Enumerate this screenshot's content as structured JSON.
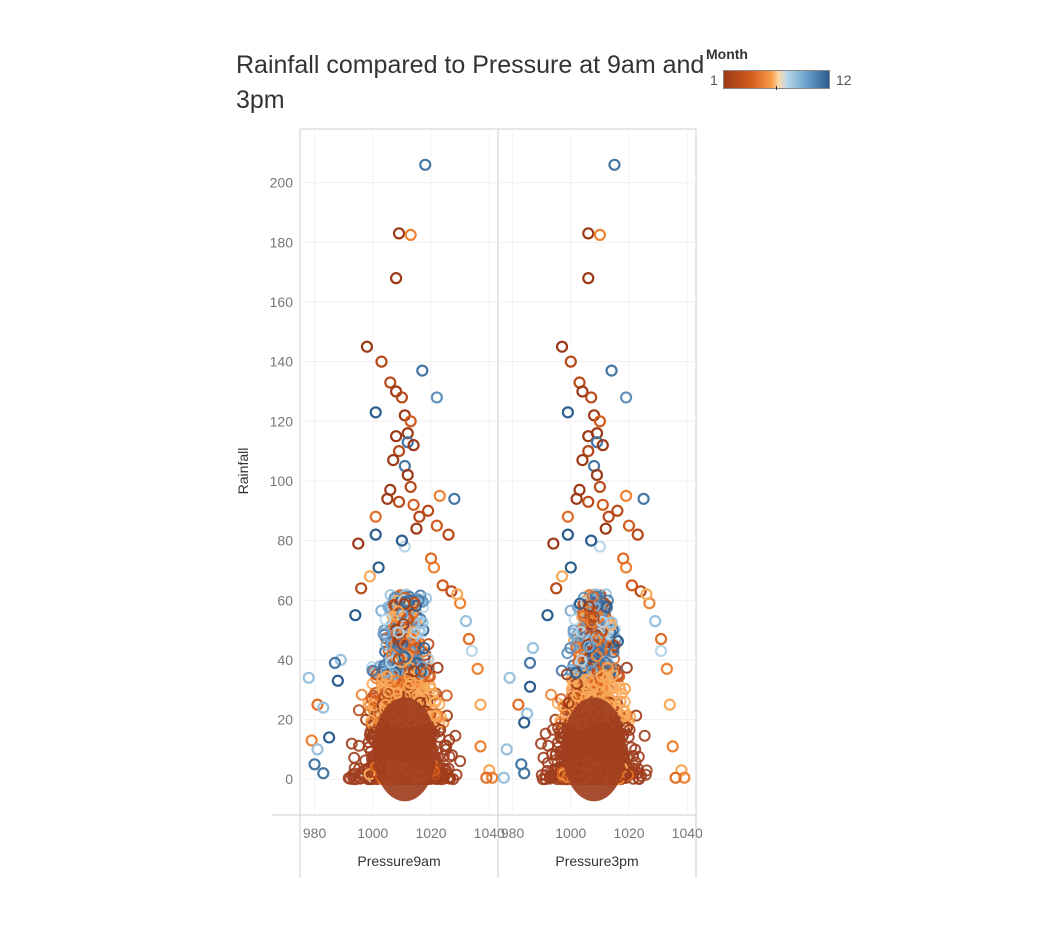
{
  "chart_data": {
    "type": "scatter",
    "title": "Rainfall compared to Pressure at 9am and 3pm",
    "ylabel": "Rainfall",
    "ylim": [
      -12,
      218
    ],
    "yticks": [
      0,
      20,
      40,
      60,
      80,
      100,
      120,
      140,
      160,
      180,
      200
    ],
    "grid": true,
    "legend": {
      "title": "Month",
      "min_label": "1",
      "max_label": "12",
      "placement": "top-right"
    },
    "colors": {
      "month_1": "#9c3a17",
      "month_6": "#f89a45",
      "month_7": "#b7d7ea",
      "month_12": "#2c5d8f"
    },
    "panels": [
      {
        "xlabel": "Pressure9am",
        "xlim": [
          975,
          1043
        ],
        "xticks": [
          980,
          1000,
          1020,
          1040
        ],
        "points": [
          {
            "x": 1018,
            "y": 206,
            "month": 11
          },
          {
            "x": 1009,
            "y": 183,
            "month": 1
          },
          {
            "x": 1013,
            "y": 182.5,
            "month": 5
          },
          {
            "x": 1008,
            "y": 168,
            "month": 1
          },
          {
            "x": 998,
            "y": 145,
            "month": 1
          },
          {
            "x": 1003,
            "y": 140,
            "month": 2
          },
          {
            "x": 1017,
            "y": 137,
            "month": 11
          },
          {
            "x": 1006,
            "y": 133,
            "month": 2
          },
          {
            "x": 1008,
            "y": 130,
            "month": 1
          },
          {
            "x": 1022,
            "y": 128,
            "month": 10
          },
          {
            "x": 1010,
            "y": 128,
            "month": 2
          },
          {
            "x": 1001,
            "y": 123,
            "month": 12
          },
          {
            "x": 1011,
            "y": 122,
            "month": 1
          },
          {
            "x": 1013,
            "y": 120,
            "month": 3
          },
          {
            "x": 1012,
            "y": 116,
            "month": 1
          },
          {
            "x": 1008,
            "y": 115,
            "month": 1
          },
          {
            "x": 1012,
            "y": 113,
            "month": 11
          },
          {
            "x": 1014,
            "y": 112,
            "month": 1
          },
          {
            "x": 1009,
            "y": 110,
            "month": 2
          },
          {
            "x": 1007,
            "y": 107,
            "month": 1
          },
          {
            "x": 1011,
            "y": 105,
            "month": 11
          },
          {
            "x": 1012,
            "y": 102,
            "month": 1
          },
          {
            "x": 1013,
            "y": 98,
            "month": 2
          },
          {
            "x": 1006,
            "y": 97,
            "month": 1
          },
          {
            "x": 1023,
            "y": 95,
            "month": 5
          },
          {
            "x": 1028,
            "y": 94,
            "month": 11
          },
          {
            "x": 1005,
            "y": 94,
            "month": 1
          },
          {
            "x": 1009,
            "y": 93,
            "month": 2
          },
          {
            "x": 1014,
            "y": 92,
            "month": 3
          },
          {
            "x": 1019,
            "y": 90,
            "month": 2
          },
          {
            "x": 1001,
            "y": 88,
            "month": 4
          },
          {
            "x": 1016,
            "y": 88,
            "month": 2
          },
          {
            "x": 1022,
            "y": 85,
            "month": 3
          },
          {
            "x": 1026,
            "y": 82,
            "month": 2
          },
          {
            "x": 1001,
            "y": 82,
            "month": 12
          },
          {
            "x": 1015,
            "y": 84,
            "month": 1
          },
          {
            "x": 1021,
            "y": 71,
            "month": 5
          },
          {
            "x": 1002,
            "y": 71,
            "month": 12
          },
          {
            "x": 1011,
            "y": 78,
            "month": 7
          },
          {
            "x": 1010,
            "y": 80,
            "month": 12
          },
          {
            "x": 999,
            "y": 68,
            "month": 6
          },
          {
            "x": 994,
            "y": 55,
            "month": 12
          },
          {
            "x": 1032,
            "y": 53,
            "month": 8
          },
          {
            "x": 1034,
            "y": 43,
            "month": 7
          },
          {
            "x": 989,
            "y": 40,
            "month": 8
          },
          {
            "x": 987,
            "y": 39,
            "month": 11
          },
          {
            "x": 978,
            "y": 34,
            "month": 8
          },
          {
            "x": 988,
            "y": 33,
            "month": 12
          },
          {
            "x": 981,
            "y": 25,
            "month": 4
          },
          {
            "x": 983,
            "y": 24,
            "month": 8
          },
          {
            "x": 985,
            "y": 14,
            "month": 12
          },
          {
            "x": 979,
            "y": 13,
            "month": 5
          },
          {
            "x": 981,
            "y": 10,
            "month": 8
          },
          {
            "x": 980,
            "y": 5,
            "month": 11
          },
          {
            "x": 983,
            "y": 2,
            "month": 11
          },
          {
            "x": 1037,
            "y": 25,
            "month": 6
          },
          {
            "x": 1037,
            "y": 11,
            "month": 5
          },
          {
            "x": 1040,
            "y": 3,
            "month": 6
          },
          {
            "x": 1041,
            "y": 0.5,
            "month": 5
          },
          {
            "x": 1039,
            "y": 0.5,
            "month": 4
          },
          {
            "x": 1036,
            "y": 37,
            "month": 5
          },
          {
            "x": 1033,
            "y": 47,
            "month": 4
          },
          {
            "x": 1030,
            "y": 59,
            "month": 5
          },
          {
            "x": 1027,
            "y": 63,
            "month": 2
          },
          {
            "x": 1020,
            "y": 74,
            "month": 4
          },
          {
            "x": 995,
            "y": 79,
            "month": 1
          },
          {
            "x": 996,
            "y": 64,
            "month": 2
          },
          {
            "x": 1024,
            "y": 65,
            "month": 3
          },
          {
            "x": 1029,
            "y": 62,
            "month": 6
          }
        ]
      },
      {
        "xlabel": "Pressure3pm",
        "xlim": [
          975,
          1043
        ],
        "xticks": [
          980,
          1000,
          1020,
          1040
        ],
        "points": [
          {
            "x": 1015,
            "y": 206,
            "month": 11
          },
          {
            "x": 1006,
            "y": 183,
            "month": 1
          },
          {
            "x": 1010,
            "y": 182.5,
            "month": 5
          },
          {
            "x": 1006,
            "y": 168,
            "month": 1
          },
          {
            "x": 997,
            "y": 145,
            "month": 1
          },
          {
            "x": 1000,
            "y": 140,
            "month": 2
          },
          {
            "x": 1014,
            "y": 137,
            "month": 11
          },
          {
            "x": 1003,
            "y": 133,
            "month": 2
          },
          {
            "x": 1004,
            "y": 130,
            "month": 1
          },
          {
            "x": 1019,
            "y": 128,
            "month": 10
          },
          {
            "x": 1007,
            "y": 128,
            "month": 2
          },
          {
            "x": 999,
            "y": 123,
            "month": 12
          },
          {
            "x": 1008,
            "y": 122,
            "month": 1
          },
          {
            "x": 1010,
            "y": 120,
            "month": 3
          },
          {
            "x": 1009,
            "y": 116,
            "month": 1
          },
          {
            "x": 1006,
            "y": 115,
            "month": 1
          },
          {
            "x": 1009,
            "y": 113,
            "month": 11
          },
          {
            "x": 1011,
            "y": 112,
            "month": 1
          },
          {
            "x": 1006,
            "y": 110,
            "month": 2
          },
          {
            "x": 1004,
            "y": 107,
            "month": 1
          },
          {
            "x": 1008,
            "y": 105,
            "month": 11
          },
          {
            "x": 1009,
            "y": 102,
            "month": 1
          },
          {
            "x": 1010,
            "y": 98,
            "month": 2
          },
          {
            "x": 1003,
            "y": 97,
            "month": 1
          },
          {
            "x": 1019,
            "y": 95,
            "month": 5
          },
          {
            "x": 1025,
            "y": 94,
            "month": 11
          },
          {
            "x": 1002,
            "y": 94,
            "month": 1
          },
          {
            "x": 1006,
            "y": 93,
            "month": 2
          },
          {
            "x": 1011,
            "y": 92,
            "month": 3
          },
          {
            "x": 1016,
            "y": 90,
            "month": 2
          },
          {
            "x": 999,
            "y": 88,
            "month": 4
          },
          {
            "x": 1013,
            "y": 88,
            "month": 2
          },
          {
            "x": 1020,
            "y": 85,
            "month": 3
          },
          {
            "x": 1023,
            "y": 82,
            "month": 2
          },
          {
            "x": 999,
            "y": 82,
            "month": 12
          },
          {
            "x": 1012,
            "y": 84,
            "month": 1
          },
          {
            "x": 1019,
            "y": 71,
            "month": 5
          },
          {
            "x": 1000,
            "y": 71,
            "month": 12
          },
          {
            "x": 1010,
            "y": 78,
            "month": 7
          },
          {
            "x": 1007,
            "y": 80,
            "month": 12
          },
          {
            "x": 997,
            "y": 68,
            "month": 6
          },
          {
            "x": 992,
            "y": 55,
            "month": 12
          },
          {
            "x": 1029,
            "y": 53,
            "month": 8
          },
          {
            "x": 1031,
            "y": 43,
            "month": 7
          },
          {
            "x": 987,
            "y": 44,
            "month": 8
          },
          {
            "x": 986,
            "y": 39,
            "month": 11
          },
          {
            "x": 979,
            "y": 34,
            "month": 8
          },
          {
            "x": 986,
            "y": 31,
            "month": 12
          },
          {
            "x": 982,
            "y": 25,
            "month": 4
          },
          {
            "x": 985,
            "y": 22,
            "month": 8
          },
          {
            "x": 984,
            "y": 19,
            "month": 12
          },
          {
            "x": 978,
            "y": 10,
            "month": 8
          },
          {
            "x": 983,
            "y": 5,
            "month": 11
          },
          {
            "x": 984,
            "y": 2,
            "month": 11
          },
          {
            "x": 977,
            "y": 0.5,
            "month": 8
          },
          {
            "x": 1034,
            "y": 25,
            "month": 6
          },
          {
            "x": 1035,
            "y": 11,
            "month": 5
          },
          {
            "x": 1038,
            "y": 3,
            "month": 6
          },
          {
            "x": 1039,
            "y": 0.5,
            "month": 5
          },
          {
            "x": 1036,
            "y": 0.5,
            "month": 4
          },
          {
            "x": 1033,
            "y": 37,
            "month": 5
          },
          {
            "x": 1031,
            "y": 47,
            "month": 4
          },
          {
            "x": 1027,
            "y": 59,
            "month": 5
          },
          {
            "x": 1024,
            "y": 63,
            "month": 2
          },
          {
            "x": 1018,
            "y": 74,
            "month": 4
          },
          {
            "x": 994,
            "y": 79,
            "month": 1
          },
          {
            "x": 995,
            "y": 64,
            "month": 2
          },
          {
            "x": 1021,
            "y": 65,
            "month": 3
          },
          {
            "x": 1026,
            "y": 62,
            "month": 6
          }
        ]
      }
    ]
  }
}
